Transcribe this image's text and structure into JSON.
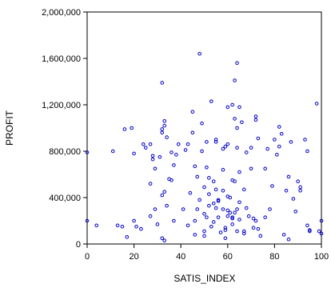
{
  "chart_data": {
    "type": "scatter",
    "title": "",
    "xlabel": "SATIS_INDEX",
    "ylabel": "PROFIT",
    "xlim": [
      0,
      100
    ],
    "ylim": [
      0,
      2000000
    ],
    "xticks": [
      0,
      20,
      40,
      60,
      80,
      100
    ],
    "yticks": [
      0,
      400000,
      800000,
      1200000,
      1600000,
      2000000
    ],
    "xtick_labels": [
      "0",
      "20",
      "40",
      "60",
      "80",
      "100"
    ],
    "ytick_labels": [
      "0",
      "400,000",
      "800,000",
      "1,200,000",
      "1,600,000",
      "2,000,000"
    ],
    "grid": false,
    "marker_color": "#0000cc",
    "series": [
      {
        "points": [
          [
            0,
            790000
          ],
          [
            0,
            200000
          ],
          [
            4,
            160000
          ],
          [
            11,
            800000
          ],
          [
            13,
            160000
          ],
          [
            15,
            150000
          ],
          [
            16,
            990000
          ],
          [
            17,
            60000
          ],
          [
            19,
            1000000
          ],
          [
            20,
            780000
          ],
          [
            20,
            200000
          ],
          [
            21,
            150000
          ],
          [
            23,
            130000
          ],
          [
            24,
            860000
          ],
          [
            25,
            830000
          ],
          [
            27,
            860000
          ],
          [
            27,
            520000
          ],
          [
            27,
            240000
          ],
          [
            28,
            760000
          ],
          [
            28,
            730000
          ],
          [
            29,
            650000
          ],
          [
            29,
            300000
          ],
          [
            30,
            170000
          ],
          [
            31,
            750000
          ],
          [
            32,
            1390000
          ],
          [
            32,
            960000
          ],
          [
            32,
            990000
          ],
          [
            32,
            420000
          ],
          [
            32,
            50000
          ],
          [
            33,
            1020000
          ],
          [
            33,
            1060000
          ],
          [
            33,
            450000
          ],
          [
            33,
            30000
          ],
          [
            34,
            330000
          ],
          [
            34,
            920000
          ],
          [
            35,
            560000
          ],
          [
            36,
            550000
          ],
          [
            36,
            790000
          ],
          [
            37,
            680000
          ],
          [
            37,
            200000
          ],
          [
            38,
            770000
          ],
          [
            39,
            860000
          ],
          [
            41,
            300000
          ],
          [
            42,
            810000
          ],
          [
            43,
            860000
          ],
          [
            43,
            160000
          ],
          [
            44,
            440000
          ],
          [
            45,
            960000
          ],
          [
            45,
            1140000
          ],
          [
            46,
            80000
          ],
          [
            46,
            200000
          ],
          [
            46,
            670000
          ],
          [
            47,
            580000
          ],
          [
            47,
            300000
          ],
          [
            48,
            380000
          ],
          [
            48,
            1640000
          ],
          [
            49,
            1040000
          ],
          [
            49,
            800000
          ],
          [
            50,
            490000
          ],
          [
            50,
            260000
          ],
          [
            50,
            110000
          ],
          [
            50,
            70000
          ],
          [
            51,
            660000
          ],
          [
            51,
            230000
          ],
          [
            51,
            880000
          ],
          [
            52,
            570000
          ],
          [
            52,
            330000
          ],
          [
            52,
            430000
          ],
          [
            53,
            1230000
          ],
          [
            53,
            150000
          ],
          [
            54,
            540000
          ],
          [
            54,
            350000
          ],
          [
            54,
            190000
          ],
          [
            55,
            880000
          ],
          [
            55,
            310000
          ],
          [
            55,
            900000
          ],
          [
            55,
            470000
          ],
          [
            56,
            380000
          ],
          [
            56,
            230000
          ],
          [
            56,
            370000
          ],
          [
            57,
            100000
          ],
          [
            58,
            300000
          ],
          [
            58,
            820000
          ],
          [
            58,
            640000
          ],
          [
            58,
            460000
          ],
          [
            59,
            50000
          ],
          [
            59,
            140000
          ],
          [
            59,
            840000
          ],
          [
            59,
            120000
          ],
          [
            60,
            1180000
          ],
          [
            60,
            860000
          ],
          [
            60,
            410000
          ],
          [
            60,
            290000
          ],
          [
            60,
            240000
          ],
          [
            61,
            400000
          ],
          [
            61,
            270000
          ],
          [
            62,
            1200000
          ],
          [
            62,
            550000
          ],
          [
            62,
            220000
          ],
          [
            62,
            170000
          ],
          [
            62,
            230000
          ],
          [
            63,
            1410000
          ],
          [
            63,
            1080000
          ],
          [
            63,
            270000
          ],
          [
            63,
            540000
          ],
          [
            64,
            1560000
          ],
          [
            64,
            1000000
          ],
          [
            64,
            830000
          ],
          [
            64,
            300000
          ],
          [
            64,
            110000
          ],
          [
            65,
            1180000
          ],
          [
            65,
            620000
          ],
          [
            65,
            360000
          ],
          [
            65,
            210000
          ],
          [
            66,
            1050000
          ],
          [
            67,
            470000
          ],
          [
            67,
            90000
          ],
          [
            67,
            110000
          ],
          [
            68,
            310000
          ],
          [
            68,
            790000
          ],
          [
            69,
            240000
          ],
          [
            70,
            830000
          ],
          [
            70,
            650000
          ],
          [
            71,
            140000
          ],
          [
            71,
            220000
          ],
          [
            72,
            1100000
          ],
          [
            72,
            1070000
          ],
          [
            72,
            200000
          ],
          [
            73,
            910000
          ],
          [
            73,
            130000
          ],
          [
            74,
            70000
          ],
          [
            76,
            650000
          ],
          [
            76,
            230000
          ],
          [
            77,
            820000
          ],
          [
            78,
            300000
          ],
          [
            79,
            500000
          ],
          [
            80,
            900000
          ],
          [
            81,
            770000
          ],
          [
            82,
            840000
          ],
          [
            82,
            1010000
          ],
          [
            83,
            950000
          ],
          [
            84,
            80000
          ],
          [
            85,
            460000
          ],
          [
            86,
            580000
          ],
          [
            86,
            40000
          ],
          [
            87,
            880000
          ],
          [
            88,
            390000
          ],
          [
            89,
            280000
          ],
          [
            90,
            540000
          ],
          [
            91,
            460000
          ],
          [
            91,
            490000
          ],
          [
            93,
            900000
          ],
          [
            94,
            800000
          ],
          [
            94,
            160000
          ],
          [
            95,
            120000
          ],
          [
            95,
            110000
          ],
          [
            98,
            1210000
          ],
          [
            99,
            110000
          ],
          [
            100,
            200000
          ],
          [
            100,
            90000
          ]
        ]
      }
    ]
  }
}
